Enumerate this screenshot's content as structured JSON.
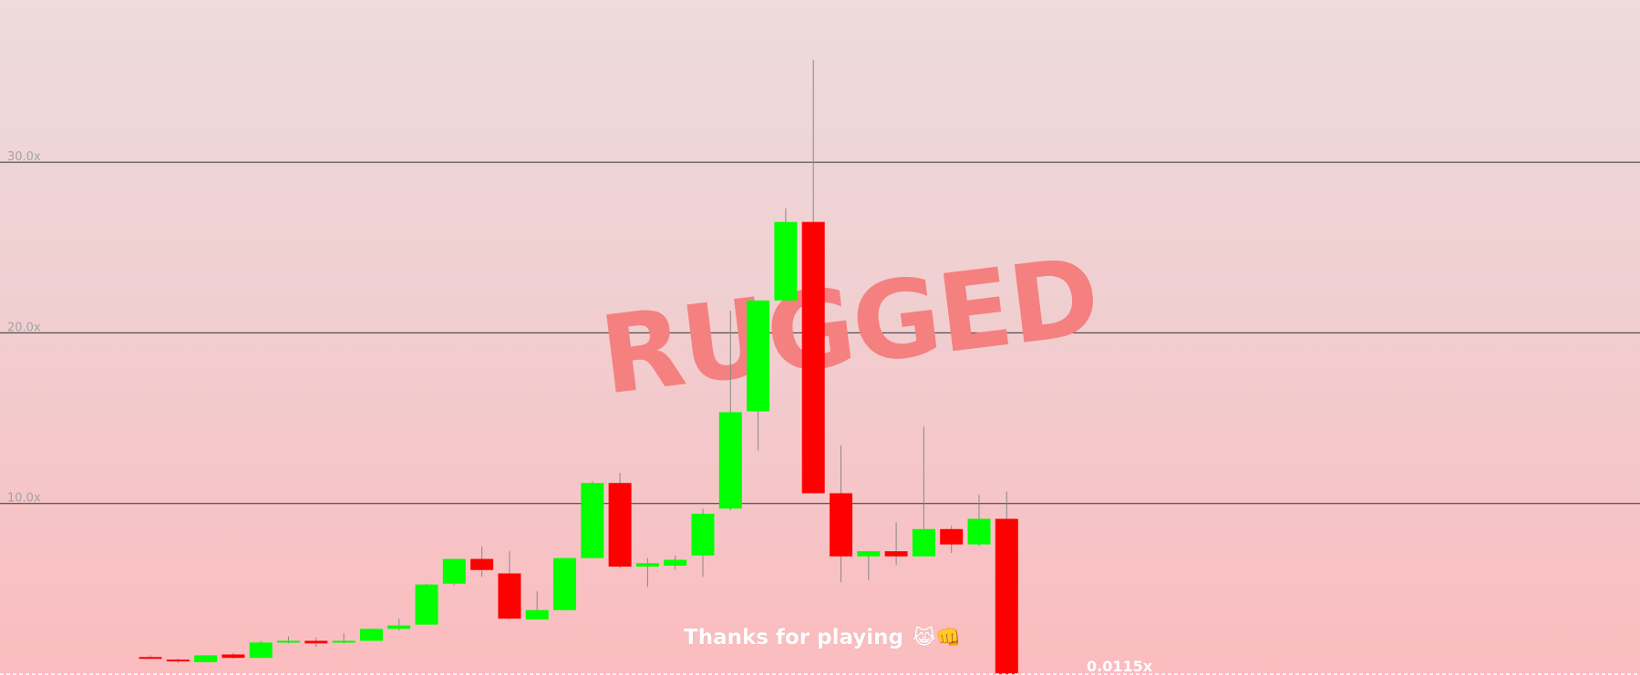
{
  "overlay_text": "RUGGED",
  "footer_message": "Thanks for playing",
  "footer_emojis": "😹👊",
  "current_multiplier": "0.0115x",
  "colors": {
    "up": "#00ff00",
    "down": "#ff0000",
    "wick": "#888888",
    "gridline": "#333333",
    "rugged": "#f58080"
  },
  "chart_data": {
    "type": "candlestick",
    "ylim": [
      0,
      39
    ],
    "yticks": [
      10,
      20,
      30
    ],
    "ytick_labels": [
      "10.0x",
      "20.0x",
      "30.0x"
    ],
    "grid": true,
    "candles": [
      {
        "open": 1.0,
        "high": 1.1,
        "low": 0.9,
        "close": 0.95
      },
      {
        "open": 0.85,
        "high": 0.9,
        "low": 0.65,
        "close": 0.75
      },
      {
        "open": 0.7,
        "high": 1.1,
        "low": 0.7,
        "close": 1.1
      },
      {
        "open": 1.15,
        "high": 1.25,
        "low": 0.9,
        "close": 0.95
      },
      {
        "open": 0.95,
        "high": 1.95,
        "low": 0.95,
        "close": 1.85
      },
      {
        "open": 1.85,
        "high": 2.2,
        "low": 1.8,
        "close": 1.95
      },
      {
        "open": 1.95,
        "high": 2.15,
        "low": 1.6,
        "close": 1.8
      },
      {
        "open": 1.85,
        "high": 2.4,
        "low": 1.8,
        "close": 1.95
      },
      {
        "open": 1.95,
        "high": 2.65,
        "low": 1.95,
        "close": 2.65
      },
      {
        "open": 2.65,
        "high": 3.25,
        "low": 2.55,
        "close": 2.85
      },
      {
        "open": 2.9,
        "high": 5.3,
        "low": 2.9,
        "close": 5.25
      },
      {
        "open": 5.3,
        "high": 6.6,
        "low": 5.2,
        "close": 6.75
      },
      {
        "open": 6.75,
        "high": 7.5,
        "low": 5.7,
        "close": 6.1
      },
      {
        "open": 5.9,
        "high": 7.2,
        "low": 3.2,
        "close": 3.25
      },
      {
        "open": 3.2,
        "high": 4.85,
        "low": 3.2,
        "close": 3.75
      },
      {
        "open": 3.75,
        "high": 6.8,
        "low": 3.75,
        "close": 6.8
      },
      {
        "open": 6.8,
        "high": 11.3,
        "low": 6.8,
        "close": 11.2
      },
      {
        "open": 11.2,
        "high": 11.8,
        "low": 6.2,
        "close": 6.3
      },
      {
        "open": 6.3,
        "high": 6.8,
        "low": 5.1,
        "close": 6.5
      },
      {
        "open": 6.35,
        "high": 6.95,
        "low": 6.1,
        "close": 6.7
      },
      {
        "open": 6.95,
        "high": 9.7,
        "low": 5.7,
        "close": 9.4
      },
      {
        "open": 9.7,
        "high": 21.3,
        "low": 9.6,
        "close": 15.35
      },
      {
        "open": 15.4,
        "high": 21.9,
        "low": 13.1,
        "close": 21.9
      },
      {
        "open": 21.9,
        "high": 27.3,
        "low": 21.9,
        "close": 26.5
      },
      {
        "open": 26.5,
        "high": 36.0,
        "low": 10.7,
        "close": 10.6
      },
      {
        "open": 10.6,
        "high": 13.4,
        "low": 5.4,
        "close": 6.9
      },
      {
        "open": 6.9,
        "high": 7.1,
        "low": 5.5,
        "close": 7.2
      },
      {
        "open": 7.2,
        "high": 8.9,
        "low": 6.4,
        "close": 6.9
      },
      {
        "open": 6.9,
        "high": 14.5,
        "low": 6.9,
        "close": 8.5
      },
      {
        "open": 8.5,
        "high": 8.7,
        "low": 7.1,
        "close": 7.6
      },
      {
        "open": 7.6,
        "high": 10.5,
        "low": 7.5,
        "close": 9.1
      },
      {
        "open": 9.1,
        "high": 10.7,
        "low": 0.0,
        "close": 0.0115
      }
    ]
  }
}
